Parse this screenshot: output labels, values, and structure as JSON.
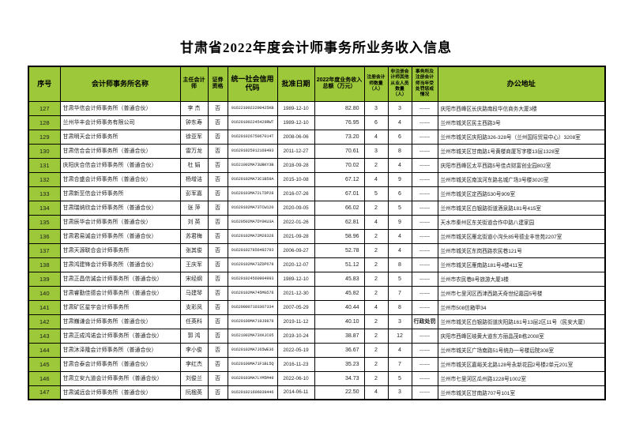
{
  "page": {
    "title": "甘肃省2022年度会计师事务所业务收入信息"
  },
  "colors": {
    "header_green": "#9cc83a",
    "border": "#000000",
    "text": "#1c1c1c"
  },
  "table": {
    "headers": [
      "序号",
      "会计师事务所名称",
      "主任会计师",
      "证券资格",
      "统一社会信用代码",
      "批准日期",
      "2022年度业务收入总额（万元）",
      "注册会计师数量（人）",
      "非注册会计师其他从业人员数量（人）",
      "事务所及注册会计师当年受处罚惩戒情况",
      "办公地址"
    ],
    "rows": [
      [
        "127",
        "甘肃华信会计师事务所（普通合伙）",
        "李  杰",
        "否",
        "9162210022200425KB",
        "1989-12-10",
        "82.80",
        "3",
        "3",
        "------",
        "庆阳市西峰区长庆路南段华信商务大厦3楼"
      ],
      [
        "128",
        "兰州华丰会计师事务有限公司",
        "钟东寿",
        "否",
        "916201002245429RWT",
        "1989-12-10",
        "76.95",
        "6",
        "4",
        "------",
        "兰州市城关区民主西路3号"
      ],
      [
        "129",
        "甘肃明天会计师事务所",
        "徐亚军",
        "否",
        "91620102675067014T",
        "2008-06-06",
        "73.20",
        "4",
        "6",
        "------",
        "兰州市城关区庆阳路326-328号（兰州国际贸易中心）3208室"
      ],
      [
        "130",
        "甘肃信合会计师事务所（普通合伙）",
        "雷万龙",
        "否",
        "916201025912168493",
        "2011-12-27",
        "70.61",
        "3",
        "8",
        "------",
        "兰州市城关区甘南路1号黄楼商厦写字楼13层1328室"
      ],
      [
        "131",
        "庆阳庆合信会计师事务所（普通合伙）",
        "杜  娟",
        "否",
        "91621002MA73UBKY3B",
        "2018-09-28",
        "70.02",
        "2",
        "4",
        "------",
        "庆阳市西峰区太平西路5号佳点财富创业园802室"
      ],
      [
        "132",
        "甘肃合盛会计师事务所（普通合伙）",
        "杨增洁",
        "否",
        "91620102MA73C1B59A",
        "2015-10-08",
        "67.12",
        "4",
        "9",
        "------",
        "兰州市城关区南滨河东路名城广场3号楼3020室"
      ],
      [
        "133",
        "甘肃新至信会计师事务所",
        "彭军嘉",
        "否",
        "91620103MA72LTDP28",
        "2016-07-26",
        "67.01",
        "5",
        "6",
        "------",
        "兰州市城关区定西路530号909室"
      ],
      [
        "134",
        "甘肃瑞纳欣会计师事务所（普通合伙）",
        "张  萍",
        "否",
        "91620102MA73TCW120",
        "2020-09-05",
        "66.02",
        "2",
        "5",
        "------",
        "兰州市城关区白银路街道酒泉路181号415室"
      ],
      [
        "135",
        "甘肃辰华会计师事务所（普通合伙）",
        "刘  英",
        "否",
        "91620502MA7DY0KU3A",
        "2022-01-26",
        "62.81",
        "4",
        "9",
        "------",
        "天水市秦州区东关街道合作中路八建家园"
      ],
      [
        "136",
        "甘肃君易诚会计师事务所（普通合伙）",
        "苏君梅",
        "否",
        "91620102MA72M28328",
        "2021-09-28",
        "58.96",
        "2",
        "4",
        "------",
        "兰州市城关区雁北街道小沟头85号德业丰世苑2207室"
      ],
      [
        "137",
        "甘肃天源联合会计师事务所",
        "张其俊",
        "否",
        "916201027856492793",
        "2006-09-27",
        "52.78",
        "2",
        "4",
        "------",
        "兰州市城关区东岗西路农民巷121号"
      ],
      [
        "138",
        "甘肃鸿建锋会计师事务所（普通合伙）",
        "王庆军",
        "否",
        "91620102MA73ZDP678",
        "2020-12-07",
        "51.12",
        "2",
        "8",
        "------",
        "兰州市城关区雁南路181号4楼411室"
      ],
      [
        "139",
        "甘肃正昌信诚会计师事务所（普通合伙）",
        "宋经纲",
        "否",
        "916201024560904993",
        "1989-12-10",
        "45.83",
        "2",
        "5",
        "------",
        "兰州市农民巷8号旅游大厦3楼"
      ],
      [
        "140",
        "甘肃睿勤佳德会计师事务所（普通合伙）",
        "马建琴",
        "否",
        "91620102MA745MG578",
        "2021-12-30",
        "45.82",
        "2",
        "7",
        "------",
        "兰州市七里河区西津西路天奇世纪嘉园5号楼"
      ],
      [
        "141",
        "甘肃矿区星宇会计师事务所",
        "支彩凤",
        "否",
        "916200007103307334",
        "2007-05-29",
        "40.44",
        "4",
        "8",
        "------",
        "兰州市508信箱甲34"
      ],
      [
        "142",
        "甘肃巍谦会计师事务所（普通合伙）",
        "任英科",
        "否",
        "91620100MA719J9878",
        "2019-11-12",
        "40.10",
        "2",
        "3",
        "行政处罚",
        "兰州市城关区白银路街道庆阳路161号13层2区11号（民安大厦）"
      ],
      [
        "143",
        "甘肃正成鸿诺会计师事务所（普通合伙）",
        "郭  鸿",
        "否",
        "91621002MA73XKJC05",
        "2019-10-24",
        "38.87",
        "2",
        "12",
        "------",
        "庆阳市西峰区岐黄大道东方丽晶茂B栋2008室"
      ],
      [
        "144",
        "甘肃沐泽隆会计师事务所（普通合伙）",
        "李小俊",
        "否",
        "91620102MA7J65WE36",
        "2022-05-19",
        "36.67",
        "2",
        "4",
        "------",
        "兰州市城关区广场南路51号统办一号楼后院308室"
      ],
      [
        "145",
        "甘肃合泰会计师事务所（普通合伙）",
        "李红杰",
        "否",
        "91620100MA71F1BL5Q",
        "2016-11-23",
        "35.23",
        "2",
        "7",
        "------",
        "兰州市城关区嘉峪关北路128号永新花园2号楼2单元201室"
      ],
      [
        "146",
        "甘肃立安九道会计师事务所（普通合伙）",
        "刘俊兰",
        "否",
        "91620103MA7LYM5M49",
        "2022-06-10",
        "34.73",
        "2",
        "5",
        "------",
        "兰州市七里河区瓜州路1228号1002室"
      ],
      [
        "147",
        "甘肃诚远会计师事务所（普通合伙）",
        "阮楹英",
        "否",
        "916201021606039446",
        "2014-06-11",
        "22.50",
        "4",
        "3",
        "------",
        "兰州市城关区甘南路707号101室"
      ]
    ]
  }
}
